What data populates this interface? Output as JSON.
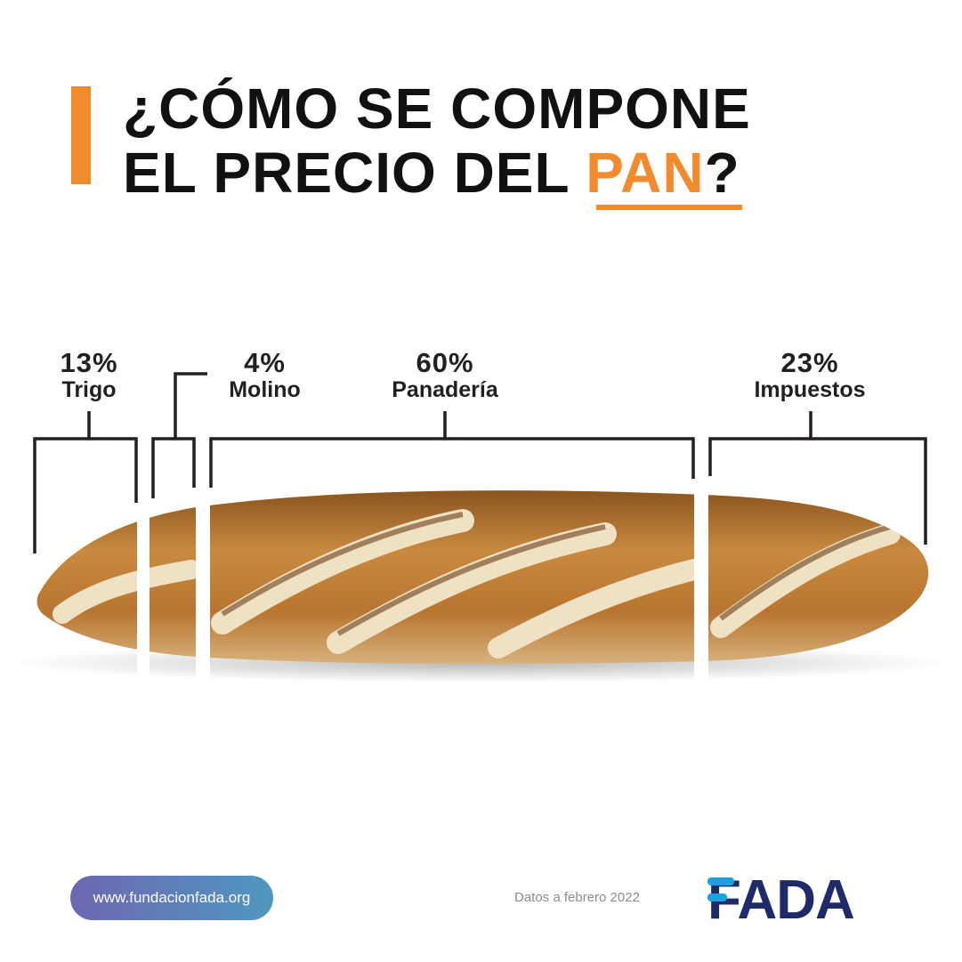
{
  "title": {
    "line1": "¿CÓMO SE COMPONE",
    "line2_prefix": "EL PRECIO DEL ",
    "line2_accent": "PAN",
    "line2_suffix": "?"
  },
  "segments": [
    {
      "percent": "13%",
      "label": "Trigo",
      "share": 13
    },
    {
      "percent": "4%",
      "label": "Molino",
      "share": 4
    },
    {
      "percent": "60%",
      "label": "Panadería",
      "share": 60
    },
    {
      "percent": "23%",
      "label": "Impuestos",
      "share": 23
    }
  ],
  "footer": {
    "website": "www.fundacionfada.org",
    "date_note": "Datos a febrero 2022",
    "logo_text": "FADA"
  },
  "colors": {
    "accent": "#f28a2e",
    "text": "#111111",
    "bracket": "#231f20",
    "logo_navy": "#1f2a6b",
    "logo_blue": "#1ba3e0"
  }
}
